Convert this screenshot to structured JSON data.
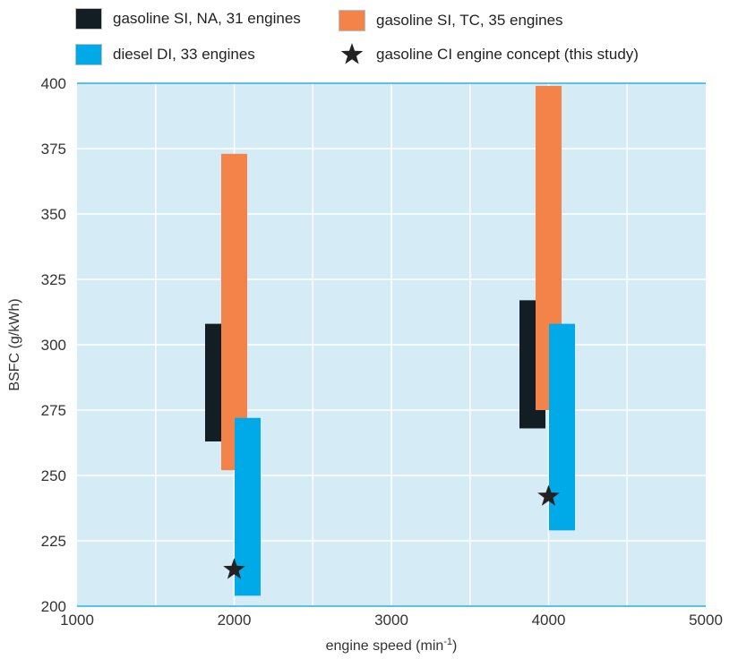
{
  "legend": [
    {
      "label": "gasoline SI, NA, 31 engines",
      "color": "#121d24",
      "marker": "box"
    },
    {
      "label": "gasoline SI, TC, 35 engines",
      "color": "#f4834a",
      "marker": "box"
    },
    {
      "label": "diesel DI, 33 engines",
      "color": "#00aae8",
      "marker": "box"
    },
    {
      "label": "gasoline CI engine concept (this study)",
      "color": "#222222",
      "marker": "star"
    }
  ],
  "chart_data": {
    "type": "bar",
    "xlabel": "engine speed (min",
    "xlabel_sup": "-1",
    "xlabel_suffix": ")",
    "ylabel": "BSFC (g/kWh)",
    "xlim": [
      1000,
      5000
    ],
    "ylim": [
      200,
      400
    ],
    "xticks": [
      "1000",
      "2000",
      "3000",
      "4000",
      "5000"
    ],
    "yticks": [
      "200",
      "225",
      "250",
      "275",
      "300",
      "325",
      "350",
      "375",
      "400"
    ],
    "grid": true,
    "legend_position": "top",
    "colors": {
      "background": "#d5ecf7",
      "grid": "#ffffff",
      "axis": "#2ab1e6"
    },
    "series": [
      {
        "name": "gasoline SI, NA, 31 engines",
        "color": "#121d24",
        "bars": [
          {
            "x": 2000,
            "low": 263,
            "high": 308
          },
          {
            "x": 4000,
            "low": 268,
            "high": 317
          }
        ]
      },
      {
        "name": "gasoline SI, TC, 35 engines",
        "color": "#f4834a",
        "bars": [
          {
            "x": 2000,
            "low": 252,
            "high": 373
          },
          {
            "x": 4000,
            "low": 275,
            "high": 399
          }
        ]
      },
      {
        "name": "diesel DI, 33 engines",
        "color": "#00aae8",
        "bars": [
          {
            "x": 2000,
            "low": 204,
            "high": 272
          },
          {
            "x": 4000,
            "low": 229,
            "high": 308
          }
        ]
      }
    ],
    "points": [
      {
        "name": "gasoline CI engine concept (this study)",
        "x": 2000,
        "y": 214
      },
      {
        "name": "gasoline CI engine concept (this study)",
        "x": 4000,
        "y": 242
      }
    ]
  }
}
